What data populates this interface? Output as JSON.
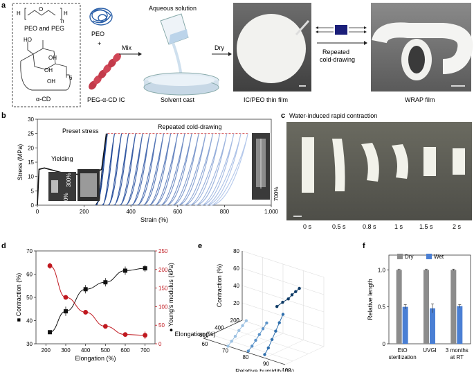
{
  "panel_a": {
    "letter": "a",
    "peo_peg_label": "PEO and PEG",
    "acd_label": "α-CD",
    "peo_label": "PEO",
    "plus": "+",
    "ic_label": "PEG-α-CD IC",
    "mix": "Mix",
    "aqueous": "Aqueous solution",
    "solvent_cast": "Solvent cast",
    "dry": "Dry",
    "thin_film": "IC/PEO thin film",
    "repeated": "Repeated",
    "cold_drawing": "cold-drawing",
    "wrap_film": "WRAP film",
    "chem_n": "n",
    "chem_6": "6",
    "chem_H": "H",
    "chem_O": "O",
    "chem_HO": "HO",
    "chem_OH": "OH"
  },
  "panel_b": {
    "letter": "b",
    "preset_stress": "Preset stress",
    "repeated_cold_drawing": "Repeated cold-drawing",
    "yielding": "Yielding",
    "inset_0": "0%",
    "inset_300": "300%",
    "inset_700": "700%"
  },
  "panel_c": {
    "letter": "c",
    "title": "Water-induced rapid contraction",
    "times": [
      "0 s",
      "0.5 s",
      "0.8 s",
      "1 s",
      "1.5 s",
      "2 s"
    ]
  },
  "panel_d": {
    "letter": "d"
  },
  "panel_e": {
    "letter": "e"
  },
  "panel_f": {
    "letter": "f"
  },
  "chart_data": [
    {
      "id": "b",
      "type": "line",
      "xlabel": "Strain (%)",
      "ylabel": "Stress (MPa)",
      "xlim": [
        0,
        1000
      ],
      "ylim": [
        0,
        30
      ],
      "xticks": [
        0,
        200,
        400,
        600,
        800,
        1000
      ],
      "xtick_labels": [
        "0",
        "200",
        "400",
        "600",
        "800",
        "1,000"
      ],
      "yticks": [
        0,
        5,
        10,
        15,
        20,
        25,
        30
      ],
      "preset_stress_y": 25,
      "first_cycle": [
        [
          0,
          0
        ],
        [
          3,
          5
        ],
        [
          5,
          9
        ],
        [
          7,
          12.5
        ],
        [
          30,
          13
        ],
        [
          120,
          11
        ],
        [
          230,
          10.5
        ],
        [
          275,
          12.5
        ],
        [
          295,
          25
        ],
        [
          278,
          13
        ],
        [
          265,
          2
        ],
        [
          250,
          0
        ]
      ],
      "cycle_start_strains": [
        248,
        275,
        300,
        325,
        350,
        375,
        400,
        425,
        450,
        475,
        500,
        525,
        550,
        575,
        600,
        625,
        650,
        675,
        700,
        720,
        740
      ],
      "cycle_peak_strains": [
        300,
        330,
        360,
        390,
        420,
        450,
        480,
        510,
        540,
        570,
        600,
        630,
        660,
        690,
        720,
        750,
        780,
        810,
        840,
        870,
        900
      ]
    },
    {
      "id": "d",
      "type": "scatter",
      "xlabel": "Elongation (%)",
      "ylabel": "Contraction (%)",
      "y2label": "Young's modulus (kPa)",
      "xlim": [
        150,
        750
      ],
      "ylim": [
        30,
        70
      ],
      "y2lim": [
        0,
        250
      ],
      "xticks": [
        200,
        300,
        400,
        500,
        600,
        700
      ],
      "yticks": [
        30,
        40,
        50,
        60,
        70
      ],
      "y2ticks": [
        0,
        50,
        100,
        150,
        200,
        250
      ],
      "x": [
        220,
        300,
        400,
        500,
        600,
        700
      ],
      "series": [
        {
          "name": "Contraction",
          "axis": "left",
          "color": "#111111",
          "marker": "square",
          "values": [
            35,
            44,
            53.5,
            56.5,
            61.5,
            62.5
          ],
          "errors": [
            0.8,
            2,
            1.8,
            1.8,
            1.8,
            1.5
          ]
        },
        {
          "name": "Young's modulus",
          "axis": "right",
          "color": "#c0181f",
          "marker": "circle",
          "values": [
            210,
            125,
            85,
            47,
            25,
            23
          ],
          "errors": [
            8,
            6,
            5,
            4,
            3,
            10
          ]
        }
      ]
    },
    {
      "id": "e",
      "type": "scatter",
      "zlabel": "Contraction (%)",
      "xlabel": "Relative humidity (%)",
      "ylabel": "Elongation (%)",
      "zticks": [
        0,
        20,
        40,
        60,
        80
      ],
      "xticks": [
        60,
        70,
        80,
        90,
        100
      ],
      "yticks": [
        200,
        400,
        600
      ],
      "series": [
        {
          "name": "",
          "color": "#0d3a66",
          "points": [
            [
              88,
              200,
              58
            ],
            [
              90,
              300,
              60
            ],
            [
              92,
              400,
              62
            ],
            [
              94,
              500,
              63
            ],
            [
              95,
              600,
              64
            ],
            [
              96,
              700,
              64
            ]
          ]
        },
        {
          "name": "",
          "color": "#2f6fad",
          "points": [
            [
              80,
              200,
              22
            ],
            [
              82,
              300,
              18
            ],
            [
              84,
              400,
              14
            ],
            [
              86,
              500,
              10
            ],
            [
              88,
              600,
              6
            ],
            [
              90,
              700,
              4
            ]
          ]
        },
        {
          "name": "",
          "color": "#5b93c9",
          "points": [
            [
              72,
              200,
              6
            ],
            [
              74,
              300,
              5
            ],
            [
              76,
              400,
              4
            ],
            [
              78,
              500,
              3
            ],
            [
              80,
              600,
              2
            ],
            [
              82,
              700,
              2
            ]
          ]
        },
        {
          "name": "",
          "color": "#9cc1e2",
          "points": [
            [
              62,
              200,
              1
            ],
            [
              64,
              300,
              1
            ],
            [
              66,
              400,
              1
            ],
            [
              68,
              500,
              0
            ],
            [
              70,
              600,
              0
            ],
            [
              72,
              700,
              0
            ]
          ]
        }
      ]
    },
    {
      "id": "f",
      "type": "bar",
      "ylabel": "Relative length",
      "ylim": [
        0,
        1.2
      ],
      "yticks": [
        0,
        0.5,
        1.0
      ],
      "ytick_labels": [
        "0",
        "0.5",
        "1.0"
      ],
      "categories": [
        "EtO sterilization",
        "UVGI",
        "3 months at RT"
      ],
      "category_lines": [
        [
          "EtO",
          "sterilization"
        ],
        [
          "UVGI"
        ],
        [
          "3 months",
          "at RT"
        ]
      ],
      "legend_position": "top",
      "series": [
        {
          "name": "Dry",
          "color": "#8c8c8c",
          "values": [
            1.0,
            1.0,
            1.0
          ],
          "errors": [
            0.01,
            0.01,
            0.01
          ]
        },
        {
          "name": "Wet",
          "color": "#4a7fd4",
          "values": [
            0.5,
            0.48,
            0.51
          ],
          "errors": [
            0.03,
            0.06,
            0.02
          ]
        }
      ]
    }
  ]
}
